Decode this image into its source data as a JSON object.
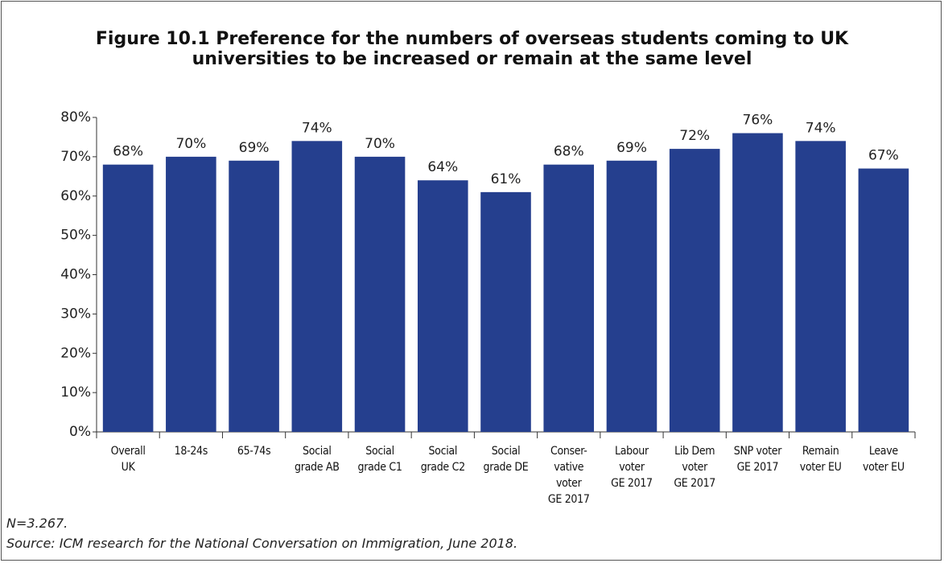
{
  "chart_data": {
    "type": "bar",
    "title": "Figure 10.1 Preference for the numbers of overseas students coming to UK\nuniversities to be increased or remain at the same level",
    "categories": [
      "Overall\nUK",
      "18-24s",
      "65-74s",
      "Social\ngrade AB",
      "Social\ngrade C1",
      "Social\ngrade C2",
      "Social\ngrade DE",
      "Conser-\nvative\nvoter\nGE 2017",
      "Labour\nvoter\nGE 2017",
      "Lib Dem\nvoter\nGE 2017",
      "SNP voter\nGE 2017",
      "Remain\nvoter EU",
      "Leave\nvoter EU"
    ],
    "values": [
      68,
      70,
      69,
      74,
      70,
      64,
      61,
      68,
      69,
      72,
      76,
      74,
      67
    ],
    "value_labels": [
      "68%",
      "70%",
      "69%",
      "74%",
      "70%",
      "64%",
      "61%",
      "68%",
      "69%",
      "72%",
      "76%",
      "74%",
      "67%"
    ],
    "color": "#253f8e",
    "ylim": [
      0,
      80
    ],
    "yticks": [
      {
        "value": 0,
        "label": "0%"
      },
      {
        "value": 10,
        "label": "10%"
      },
      {
        "value": 20,
        "label": "20%"
      },
      {
        "value": 30,
        "label": "30%"
      },
      {
        "value": 40,
        "label": "40%"
      },
      {
        "value": 50,
        "label": "50%"
      },
      {
        "value": 60,
        "label": "60%"
      },
      {
        "value": 70,
        "label": "70%"
      },
      {
        "value": 80,
        "label": "80%"
      }
    ],
    "notes": [
      "N=3.267.",
      "Source: ICM research for the National Conversation on Immigration, June 2018."
    ]
  }
}
